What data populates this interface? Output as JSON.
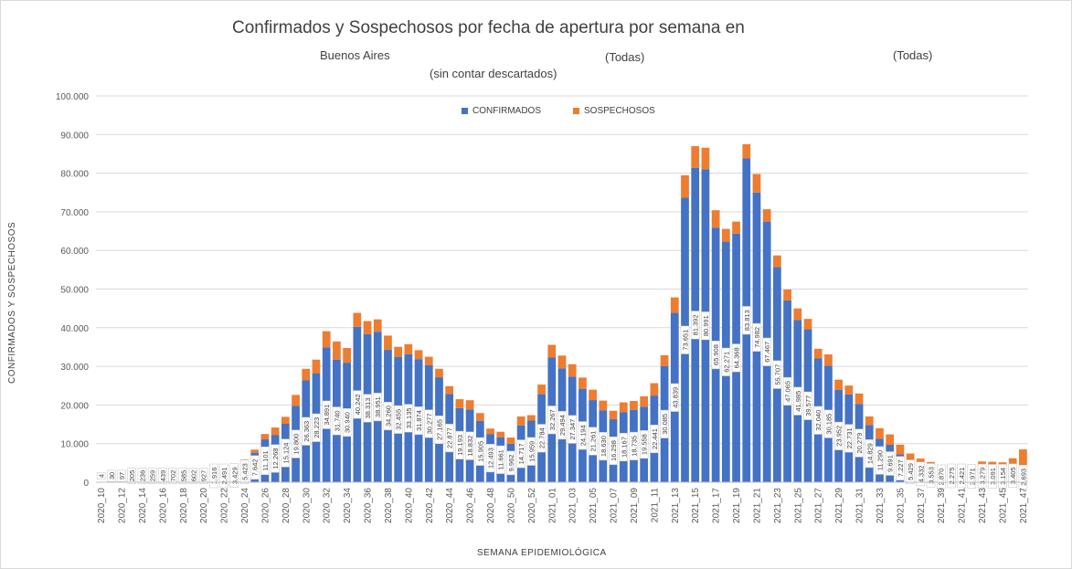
{
  "header": {
    "title": "Confirmados y Sospechosos por fecha de apertura por semana en",
    "province": "Buenos Aires",
    "filter1": "(Todas)",
    "filter2": "(Todas)",
    "note": "(sin contar descartados)"
  },
  "colors": {
    "confirmados": "#4472c4",
    "sospechosos": "#ed7d31",
    "grid": "#d9d9d9"
  },
  "chart_data": {
    "type": "bar",
    "stacked": true,
    "title": "Confirmados y Sospechosos por fecha de apertura por semana en",
    "xlabel": "SEMANA EPIDEMIOLÓGICA",
    "ylabel": "CONFIRMADOS Y SOSPECHOSOS",
    "ylim": [
      0,
      100000
    ],
    "yticks": [
      0,
      10000,
      20000,
      30000,
      40000,
      50000,
      60000,
      70000,
      80000,
      90000,
      100000
    ],
    "ytick_labels": [
      "0",
      "10.000",
      "20.000",
      "30.000",
      "40.000",
      "50.000",
      "60.000",
      "70.000",
      "80.000",
      "90.000",
      "100.000"
    ],
    "legend": "top-center",
    "grid": true,
    "categories": [
      "2020_10",
      "2020_11",
      "2020_12",
      "2020_13",
      "2020_14",
      "2020_15",
      "2020_16",
      "2020_17",
      "2020_18",
      "2020_19",
      "2020_20",
      "2020_21",
      "2020_22",
      "2020_23",
      "2020_24",
      "2020_25",
      "2020_26",
      "2020_27",
      "2020_28",
      "2020_29",
      "2020_30",
      "2020_31",
      "2020_32",
      "2020_33",
      "2020_34",
      "2020_35",
      "2020_36",
      "2020_37",
      "2020_38",
      "2020_39",
      "2020_40",
      "2020_41",
      "2020_42",
      "2020_43",
      "2020_44",
      "2020_45",
      "2020_46",
      "2020_47",
      "2020_48",
      "2020_49",
      "2020_50",
      "2020_51",
      "2020_52",
      "2020_53",
      "2021_01",
      "2021_02",
      "2021_03",
      "2021_04",
      "2021_05",
      "2021_06",
      "2021_07",
      "2021_08",
      "2021_09",
      "2021_10",
      "2021_11",
      "2021_12",
      "2021_13",
      "2021_14",
      "2021_15",
      "2021_16",
      "2021_17",
      "2021_18",
      "2021_19",
      "2021_20",
      "2021_21",
      "2021_22",
      "2021_23",
      "2021_24",
      "2021_25",
      "2021_26",
      "2021_27",
      "2021_28",
      "2021_29",
      "2021_30",
      "2021_31",
      "2021_32",
      "2021_33",
      "2021_34",
      "2021_35",
      "2021_36",
      "2021_37",
      "2021_38",
      "2021_39",
      "2021_40",
      "2021_41",
      "2021_42",
      "2021_43",
      "2021_44",
      "2021_45",
      "2021_46",
      "2021_47"
    ],
    "tick_labels": [
      "2020_10",
      "2020_12",
      "2020_14",
      "2020_16",
      "2020_18",
      "2020_20",
      "2020_22",
      "2020_24",
      "2020_26",
      "2020_28",
      "2020_30",
      "2020_32",
      "2020_34",
      "2020_36",
      "2020_38",
      "2020_40",
      "2020_42",
      "2020_44",
      "2020_46",
      "2020_48",
      "2020_50",
      "2020_52",
      "2021_01",
      "2021_03",
      "2021_05",
      "2021_07",
      "2021_09",
      "2021_11",
      "2021_13",
      "2021_15",
      "2021_17",
      "2021_19",
      "2021_21",
      "2021_23",
      "2021_25",
      "2021_27",
      "2021_29",
      "2021_31",
      "2021_33",
      "2021_35",
      "2021_37",
      "2021_39",
      "2021_41",
      "2021_43",
      "2021_45",
      "2021_47"
    ],
    "series": [
      {
        "name": "CONFIRMADOS",
        "values": [
          4,
          30,
          97,
          205,
          236,
          259,
          439,
          702,
          585,
          602,
          927,
          1916,
          2491,
          3429,
          5423,
          7642,
          11101,
          12268,
          15124,
          19800,
          26363,
          28223,
          34891,
          31740,
          30940,
          40242,
          38313,
          38951,
          34260,
          32455,
          33135,
          31874,
          30277,
          27165,
          22877,
          19193,
          18832,
          15905,
          12493,
          11661,
          9962,
          14717,
          15959,
          22784,
          32267,
          29494,
          27347,
          24194,
          21261,
          18630,
          16298,
          18167,
          18735,
          19558,
          22441,
          30085,
          43839,
          73651,
          81392,
          80991,
          65908,
          62271,
          64368,
          83813,
          74982,
          67467,
          55707,
          47065,
          41985,
          39577,
          32040,
          30185,
          23952,
          22731,
          20279,
          14829,
          11290,
          9691,
          7227,
          5429,
          4332,
          3553,
          2870,
          2275,
          2421,
          2971,
          3279,
          3091,
          3154,
          3405,
          2693
        ],
        "labels": [
          "4",
          "30",
          "97",
          "205",
          "236",
          "259",
          "439",
          "702",
          "585",
          "602",
          "927",
          "1.916",
          "2.491",
          "3.429",
          "5.423",
          "7.642",
          "11.101",
          "12.268",
          "15.124",
          "19.800",
          "26.363",
          "28.223",
          "34.891",
          "31.740",
          "30.940",
          "40.242",
          "38.313",
          "38.951",
          "34.260",
          "32.455",
          "33.135",
          "31.874",
          "30.277",
          "27.165",
          "22.877",
          "19.193",
          "18.832",
          "15.905",
          "12.493",
          "11.661",
          "9.962",
          "14.717",
          "15.959",
          "22.784",
          "32.267",
          "29.494",
          "27.347",
          "24.194",
          "21.261",
          "18.630",
          "16.298",
          "18.167",
          "18.735",
          "19.558",
          "22.441",
          "30.085",
          "43.839",
          "73.651",
          "81.392",
          "80.991",
          "65.908",
          "62.271",
          "64.368",
          "83.813",
          "74.982",
          "67.467",
          "55.707",
          "47.065",
          "41.985",
          "39.577",
          "32.040",
          "30.185",
          "23.952",
          "22.731",
          "20.279",
          "14.829",
          "11.290",
          "9.691",
          "7.227",
          "5.429",
          "4.332",
          "3.553",
          "2.870",
          "2.275",
          "2.421",
          "2.971",
          "3.279",
          "3.091",
          "3.154",
          "3.405",
          "2.693"
        ]
      },
      {
        "name": "SOSPECHOSOS",
        "values": [
          0,
          0,
          0,
          0,
          0,
          0,
          0,
          0,
          0,
          0,
          0,
          0,
          100,
          300,
          500,
          800,
          1400,
          1900,
          1800,
          2800,
          3000,
          3500,
          4200,
          4700,
          3800,
          3600,
          3400,
          3200,
          3700,
          2600,
          2600,
          2300,
          2200,
          2200,
          2000,
          2300,
          2400,
          2000,
          1400,
          1400,
          1600,
          2300,
          1400,
          2500,
          3300,
          3300,
          3200,
          2900,
          2700,
          2500,
          2200,
          2500,
          2300,
          2700,
          3200,
          2800,
          4000,
          5800,
          5600,
          5600,
          4500,
          3300,
          3100,
          3700,
          4800,
          3200,
          3000,
          2800,
          3000,
          2700,
          2500,
          2900,
          2600,
          2300,
          2700,
          2200,
          2700,
          2700,
          2500,
          2000,
          1800,
          1700,
          1500,
          1400,
          1000,
          1600,
          2100,
          2200,
          2000,
          2800,
          5800
        ]
      }
    ]
  }
}
